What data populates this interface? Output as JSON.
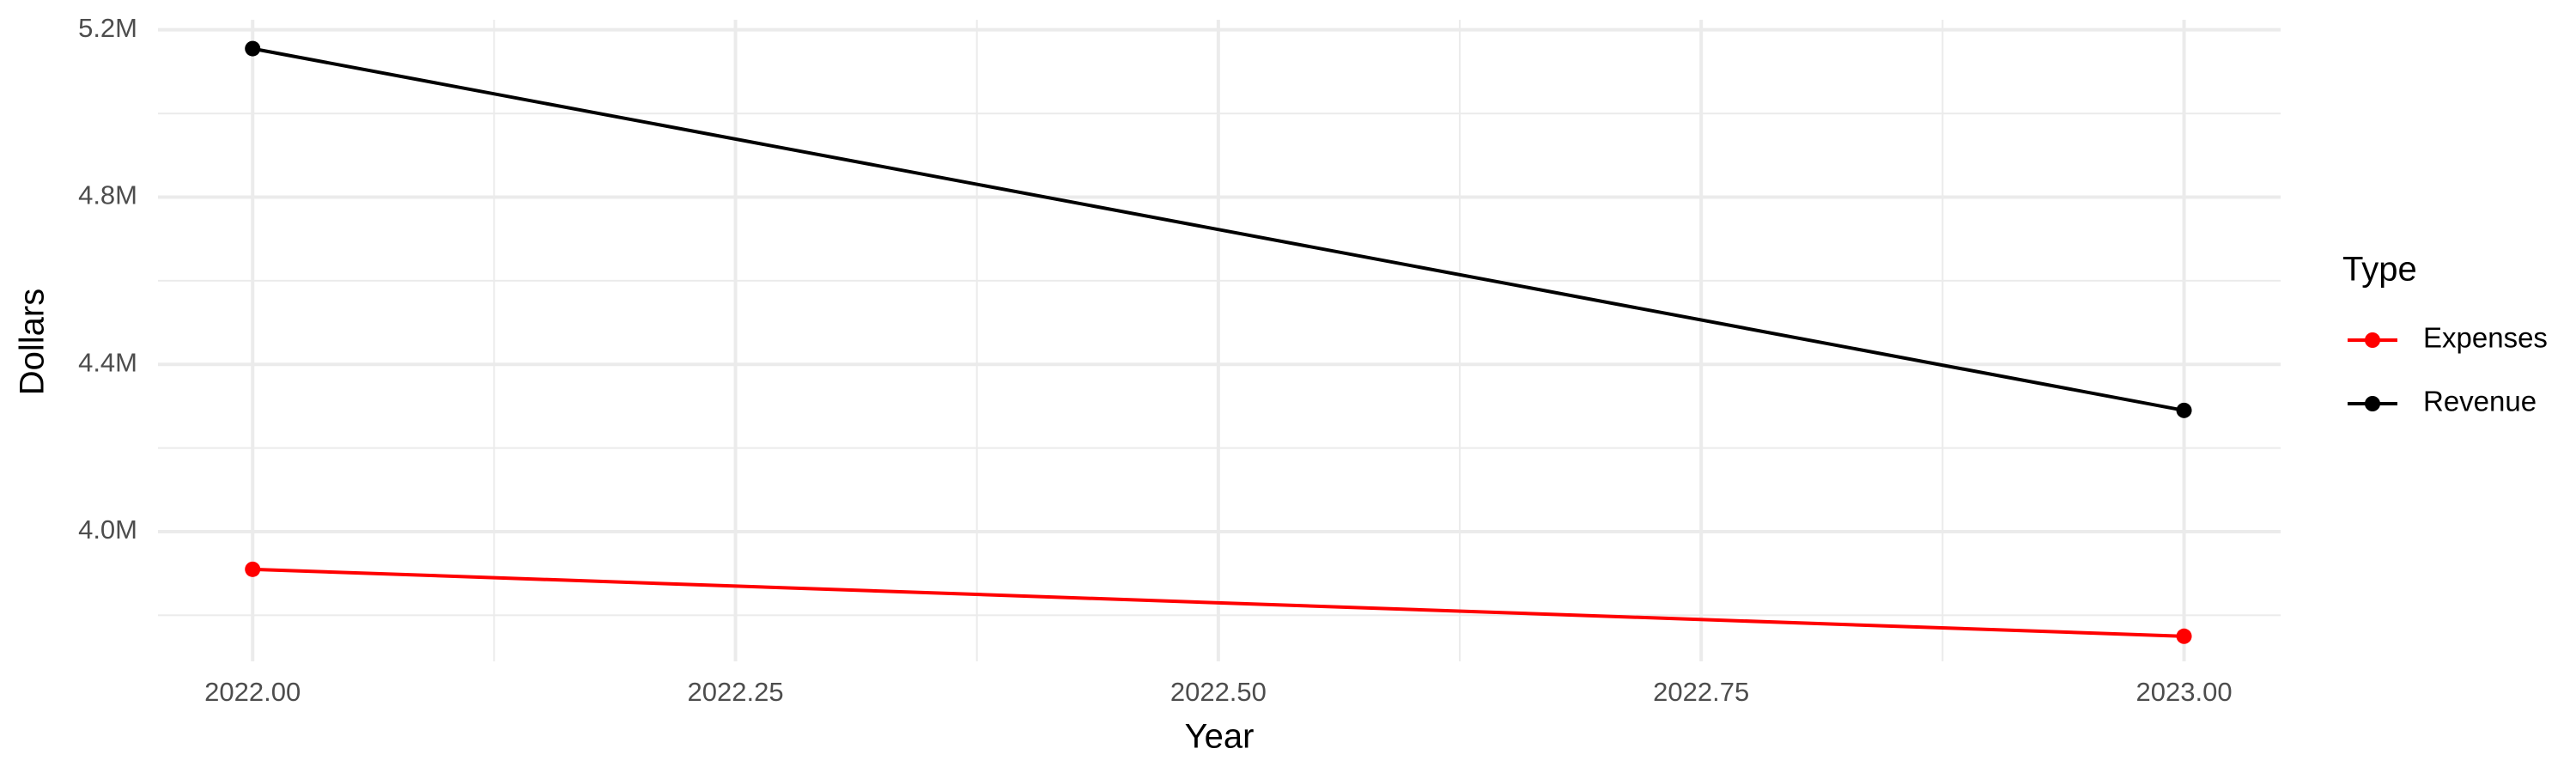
{
  "chart_data": {
    "type": "line",
    "x_label": "Year",
    "y_label": "Dollars",
    "legend_title": "Type",
    "legend": "right",
    "x": [
      2022,
      2023
    ],
    "series": [
      {
        "name": "Expenses",
        "color": "#ff0000",
        "values": [
          3910000,
          3750000
        ]
      },
      {
        "name": "Revenue",
        "color": "#000000",
        "values": [
          5155000,
          4290000
        ]
      }
    ],
    "xlim": [
      2021.951,
      2023.05
    ],
    "ylim": [
      3690000,
      5224000
    ],
    "xticks": [
      {
        "value": 2022,
        "label": "2022.00"
      },
      {
        "value": 2022.25,
        "label": "2022.25"
      },
      {
        "value": 2022.5,
        "label": "2022.50"
      },
      {
        "value": 2022.75,
        "label": "2022.75"
      },
      {
        "value": 2023,
        "label": "2023.00"
      }
    ],
    "yticks": [
      {
        "value": 4000000,
        "label": "4.0M"
      },
      {
        "value": 4400000,
        "label": "4.4M"
      },
      {
        "value": 4800000,
        "label": "4.8M"
      },
      {
        "value": 5200000,
        "label": "5.2M"
      }
    ],
    "x_minor_grid": [
      2022.125,
      2022.375,
      2022.625,
      2022.875
    ],
    "y_minor_grid": [
      3800000,
      4200000,
      4600000,
      5000000
    ],
    "grid": true
  }
}
